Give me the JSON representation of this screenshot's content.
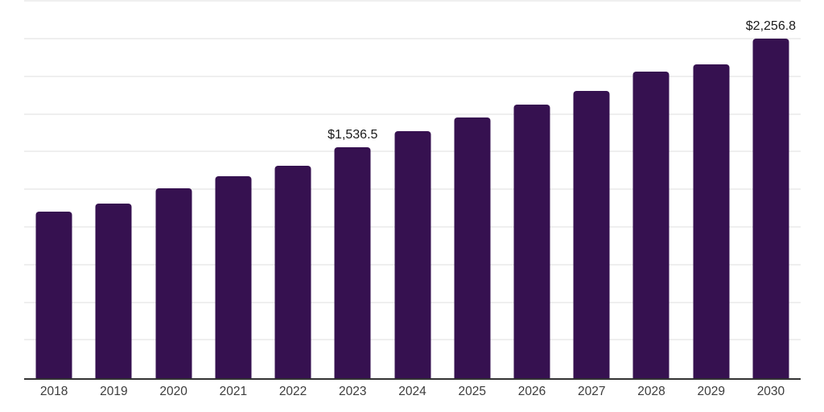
{
  "chart_data": {
    "type": "bar",
    "title": "",
    "xlabel": "",
    "ylabel": "",
    "categories": [
      "2018",
      "2019",
      "2020",
      "2021",
      "2022",
      "2023",
      "2024",
      "2025",
      "2026",
      "2027",
      "2028",
      "2029",
      "2030"
    ],
    "values": [
      1108,
      1159,
      1260,
      1342,
      1413,
      1536.5,
      1640,
      1732,
      1818,
      1907,
      2035,
      2085,
      2256.8
    ],
    "data_labels": [
      "",
      "",
      "",
      "",
      "",
      "$1,536.5",
      "",
      "",
      "",
      "",
      "",
      "",
      "$2,256.8"
    ],
    "ylim": [
      0,
      2513
    ],
    "gridline_step": 250,
    "grid": true,
    "legend": "none",
    "colors": {
      "bar": "#361150",
      "grid": "#efefef",
      "axis": "#333333",
      "data_label": "#1a1a1a",
      "tick_label": "#3c3c3c",
      "background": "#ffffff"
    }
  }
}
